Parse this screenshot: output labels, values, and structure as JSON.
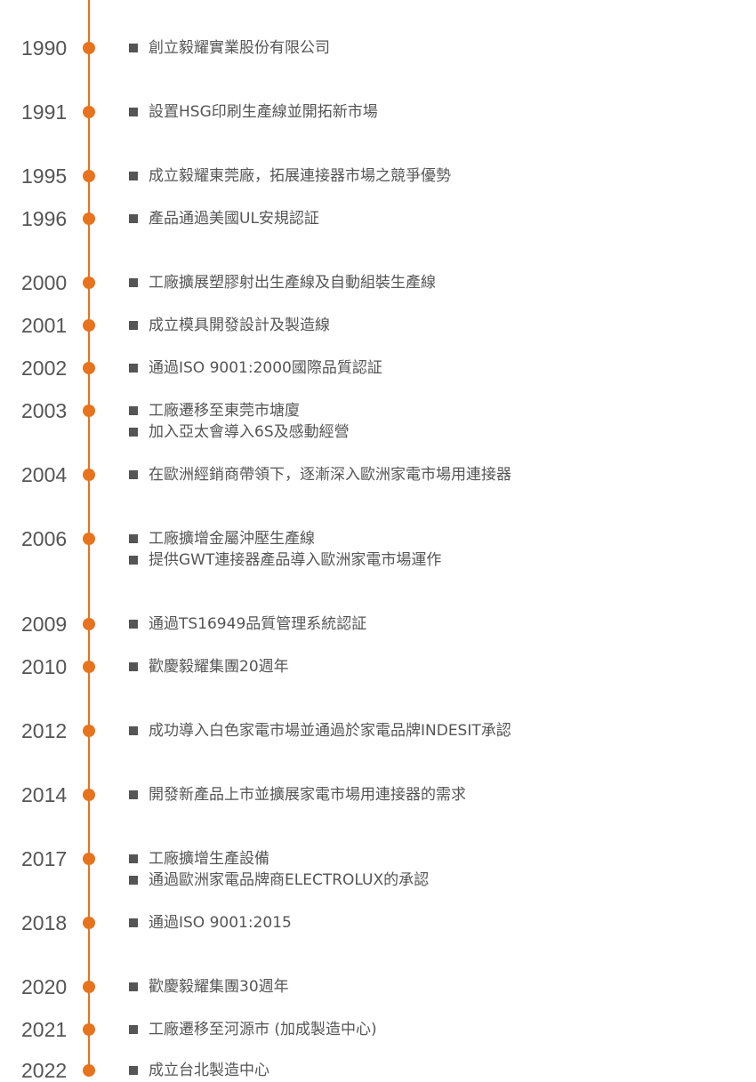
{
  "timeline": {
    "accent_color": "#e8731e",
    "entries": [
      {
        "year": "1990",
        "items": [
          "創立毅耀實業股份有限公司"
        ]
      },
      {
        "year": "1991",
        "items": [
          "設置HSG印刷生產線並開拓新市場"
        ]
      },
      {
        "year": "1995",
        "items": [
          "成立毅耀東莞廠，拓展連接器市場之競爭優勢"
        ]
      },
      {
        "year": "1996",
        "items": [
          "產品通過美國UL安規認証"
        ]
      },
      {
        "year": "2000",
        "items": [
          "工廠擴展塑膠射出生產線及自動組裝生產線"
        ]
      },
      {
        "year": "2001",
        "items": [
          "成立模具開發設計及製造線"
        ]
      },
      {
        "year": "2002",
        "items": [
          "通過ISO 9001:2000國際品質認証"
        ]
      },
      {
        "year": "2003",
        "items": [
          "工廠遷移至東莞市塘廈",
          "加入亞太會導入6S及感動經營"
        ]
      },
      {
        "year": "2004",
        "items": [
          "在歐洲經銷商帶領下，逐漸深入歐洲家電市場用連接器"
        ]
      },
      {
        "year": "2006",
        "items": [
          "工廠擴增金屬沖壓生產線",
          "提供GWT連接器產品導入歐洲家電市場運作"
        ]
      },
      {
        "year": "2009",
        "items": [
          "通過TS16949品質管理系統認証"
        ]
      },
      {
        "year": "2010",
        "items": [
          "歡慶毅耀集團20週年"
        ]
      },
      {
        "year": "2012",
        "items": [
          "成功導入白色家電市場並通過於家電品牌INDESIT承認"
        ]
      },
      {
        "year": "2014",
        "items": [
          "開發新產品上市並擴展家電市場用連接器的需求"
        ]
      },
      {
        "year": "2017",
        "items": [
          "工廠擴增生產設備",
          "通過歐洲家電品牌商ELECTROLUX的承認"
        ]
      },
      {
        "year": "2018",
        "items": [
          "通過ISO 9001:2015"
        ]
      },
      {
        "year": "2020",
        "items": [
          "歡慶毅耀集團30週年"
        ]
      },
      {
        "year": "2021",
        "items": [
          "工廠遷移至河源市 (加成製造中心)"
        ]
      },
      {
        "year": "2022",
        "items": [
          "成立台北製造中心"
        ]
      }
    ]
  }
}
